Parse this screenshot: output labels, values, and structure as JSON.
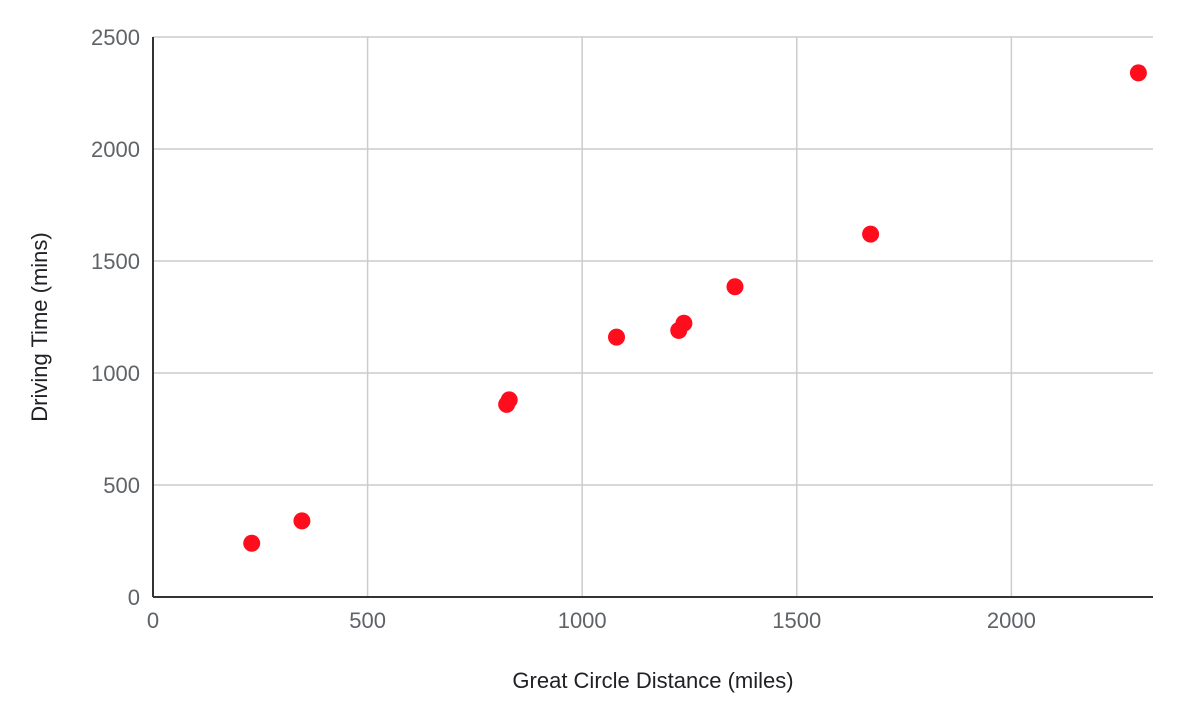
{
  "chart_data": {
    "type": "scatter",
    "title": "",
    "xlabel": "Great Circle Distance (miles)",
    "ylabel": "Driving Time (mins)",
    "xlim": [
      0,
      2330
    ],
    "ylim": [
      0,
      2500
    ],
    "x_ticks": [
      0,
      500,
      1000,
      1500,
      2000
    ],
    "y_ticks": [
      0,
      500,
      1000,
      1500,
      2000,
      2500
    ],
    "grid": true,
    "legend": "none",
    "series": [
      {
        "color": "#ff0d1c",
        "points": [
          {
            "x": 230,
            "y": 240
          },
          {
            "x": 347,
            "y": 340
          },
          {
            "x": 824,
            "y": 860
          },
          {
            "x": 830,
            "y": 880
          },
          {
            "x": 1080,
            "y": 1160
          },
          {
            "x": 1225,
            "y": 1190
          },
          {
            "x": 1237,
            "y": 1222
          },
          {
            "x": 1356,
            "y": 1385
          },
          {
            "x": 1672,
            "y": 1620
          },
          {
            "x": 2296,
            "y": 2340
          }
        ]
      }
    ]
  }
}
